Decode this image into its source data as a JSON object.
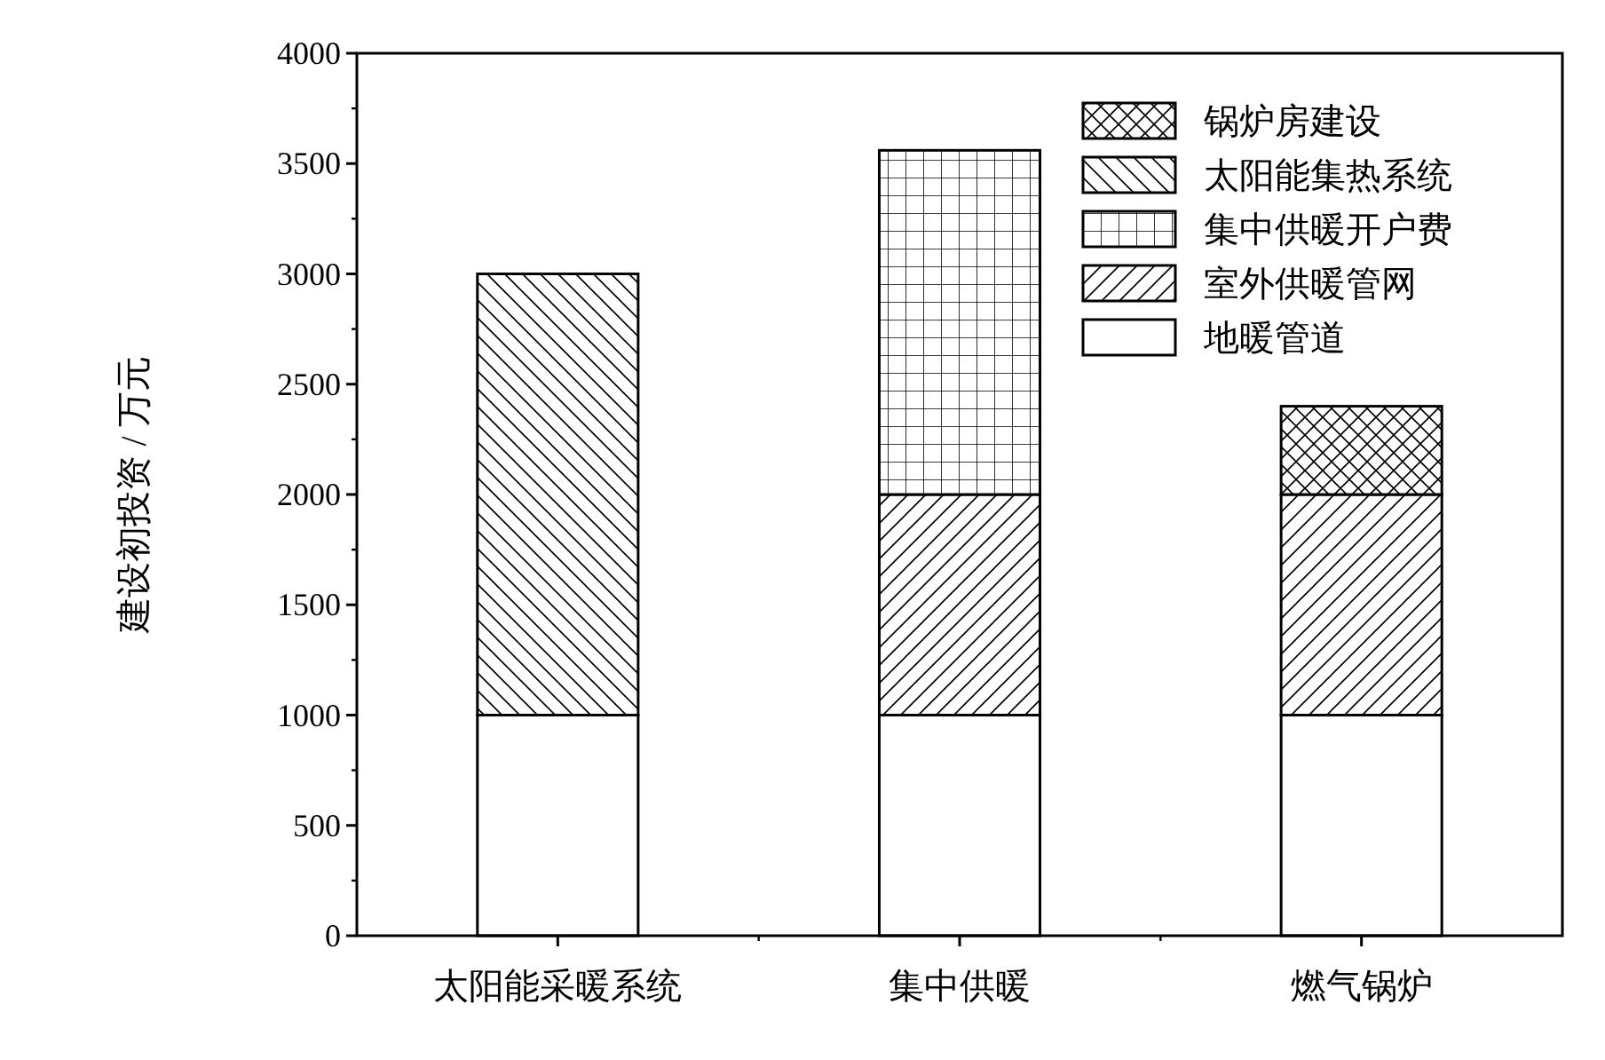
{
  "chart_data": {
    "type": "bar",
    "stacked": true,
    "ylabel": "建设初投资 / 万元",
    "categories": [
      "太阳能采暖系统",
      "集中供暖",
      "燃气锅炉"
    ],
    "series": [
      {
        "name": "地暖管道",
        "values": [
          1000,
          1000,
          1000
        ]
      },
      {
        "name": "室外供暖管网",
        "values": [
          null,
          1000,
          1000
        ]
      },
      {
        "name": "集中供暖开户费",
        "values": [
          null,
          1560,
          null
        ]
      },
      {
        "name": "太阳能集热系统",
        "values": [
          2000,
          null,
          null
        ]
      },
      {
        "name": "锅炉房建设",
        "values": [
          null,
          null,
          400
        ]
      }
    ],
    "ylim": [
      0,
      4000
    ],
    "yticks": [
      0,
      500,
      1000,
      1500,
      2000,
      2500,
      3000,
      3500,
      4000
    ],
    "legend": "top right"
  }
}
